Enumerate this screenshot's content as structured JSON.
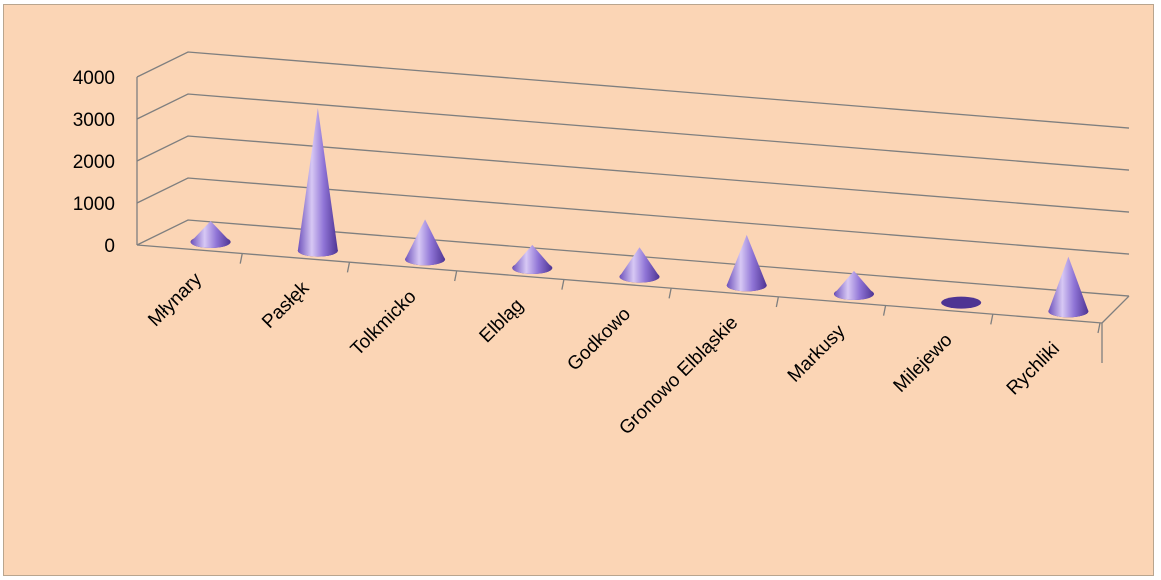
{
  "chart_data": {
    "type": "bar",
    "style": "3d-cone",
    "categories": [
      "Młynary",
      "Pasłęk",
      "Tolkmicko",
      "Elbląg",
      "Godkowo",
      "Gronowo Elbląskie",
      "Markusy",
      "Milejewo",
      "Rychliki"
    ],
    "series": [
      {
        "values": [
          500,
          3400,
          950,
          550,
          700,
          1200,
          550,
          0,
          1300
        ]
      }
    ],
    "y_ticks": [
      "4000",
      "3000",
      "2000",
      "1000",
      "0"
    ],
    "ylim": [
      0,
      4000
    ],
    "grid": true,
    "legend": "none",
    "colors": {
      "cone_light": "#d7c8f4",
      "cone_mid": "#8f74d6",
      "cone_dark": "#4e3493",
      "background": "#fbd5b5",
      "gridline": "#7f7f7f"
    }
  }
}
